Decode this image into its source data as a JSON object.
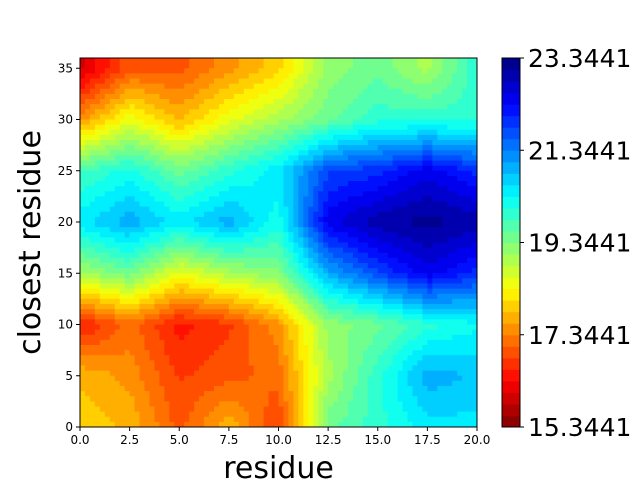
{
  "chart_data": {
    "type": "heatmap",
    "subtype": "filled-contour",
    "title": "",
    "xlabel": "residue",
    "ylabel": "closest residue",
    "xlim": [
      0,
      20
    ],
    "ylim": [
      0,
      36
    ],
    "x_ticks": [
      "0.0",
      "2.5",
      "5.0",
      "7.5",
      "10.0",
      "12.5",
      "15.0",
      "17.5",
      "20.0"
    ],
    "y_ticks": [
      "0",
      "5",
      "10",
      "15",
      "20",
      "25",
      "30",
      "35"
    ],
    "colormap": "jet_r",
    "colorbar": {
      "min": 15.3441,
      "max": 23.3441,
      "ticks": [
        "15.3441",
        "17.3441",
        "19.3441",
        "21.3441",
        "23.3441"
      ]
    },
    "x": [
      0,
      2.5,
      5,
      7.5,
      10,
      12.5,
      15,
      17.5,
      20
    ],
    "y": [
      0,
      5,
      10,
      15,
      20,
      25,
      30,
      35
    ],
    "values": [
      [
        18.0,
        17.8,
        17.0,
        17.8,
        16.8,
        19.5,
        20.0,
        20.5,
        20.5
      ],
      [
        17.8,
        17.5,
        16.8,
        17.0,
        17.2,
        19.0,
        20.0,
        21.0,
        20.8
      ],
      [
        16.5,
        17.2,
        16.5,
        16.8,
        17.5,
        19.2,
        19.5,
        20.0,
        20.3
      ],
      [
        19.0,
        19.5,
        18.5,
        19.0,
        19.3,
        21.0,
        21.8,
        22.5,
        22.0
      ],
      [
        20.5,
        21.0,
        20.5,
        21.0,
        20.2,
        22.5,
        23.0,
        23.2,
        23.0
      ],
      [
        19.8,
        20.2,
        19.5,
        20.0,
        20.5,
        21.8,
        22.0,
        22.5,
        22.0
      ],
      [
        17.5,
        18.5,
        17.8,
        18.5,
        19.0,
        19.5,
        20.0,
        20.0,
        20.0
      ],
      [
        16.0,
        17.0,
        17.0,
        17.5,
        18.0,
        19.2,
        19.5,
        19.0,
        20.0
      ]
    ]
  }
}
